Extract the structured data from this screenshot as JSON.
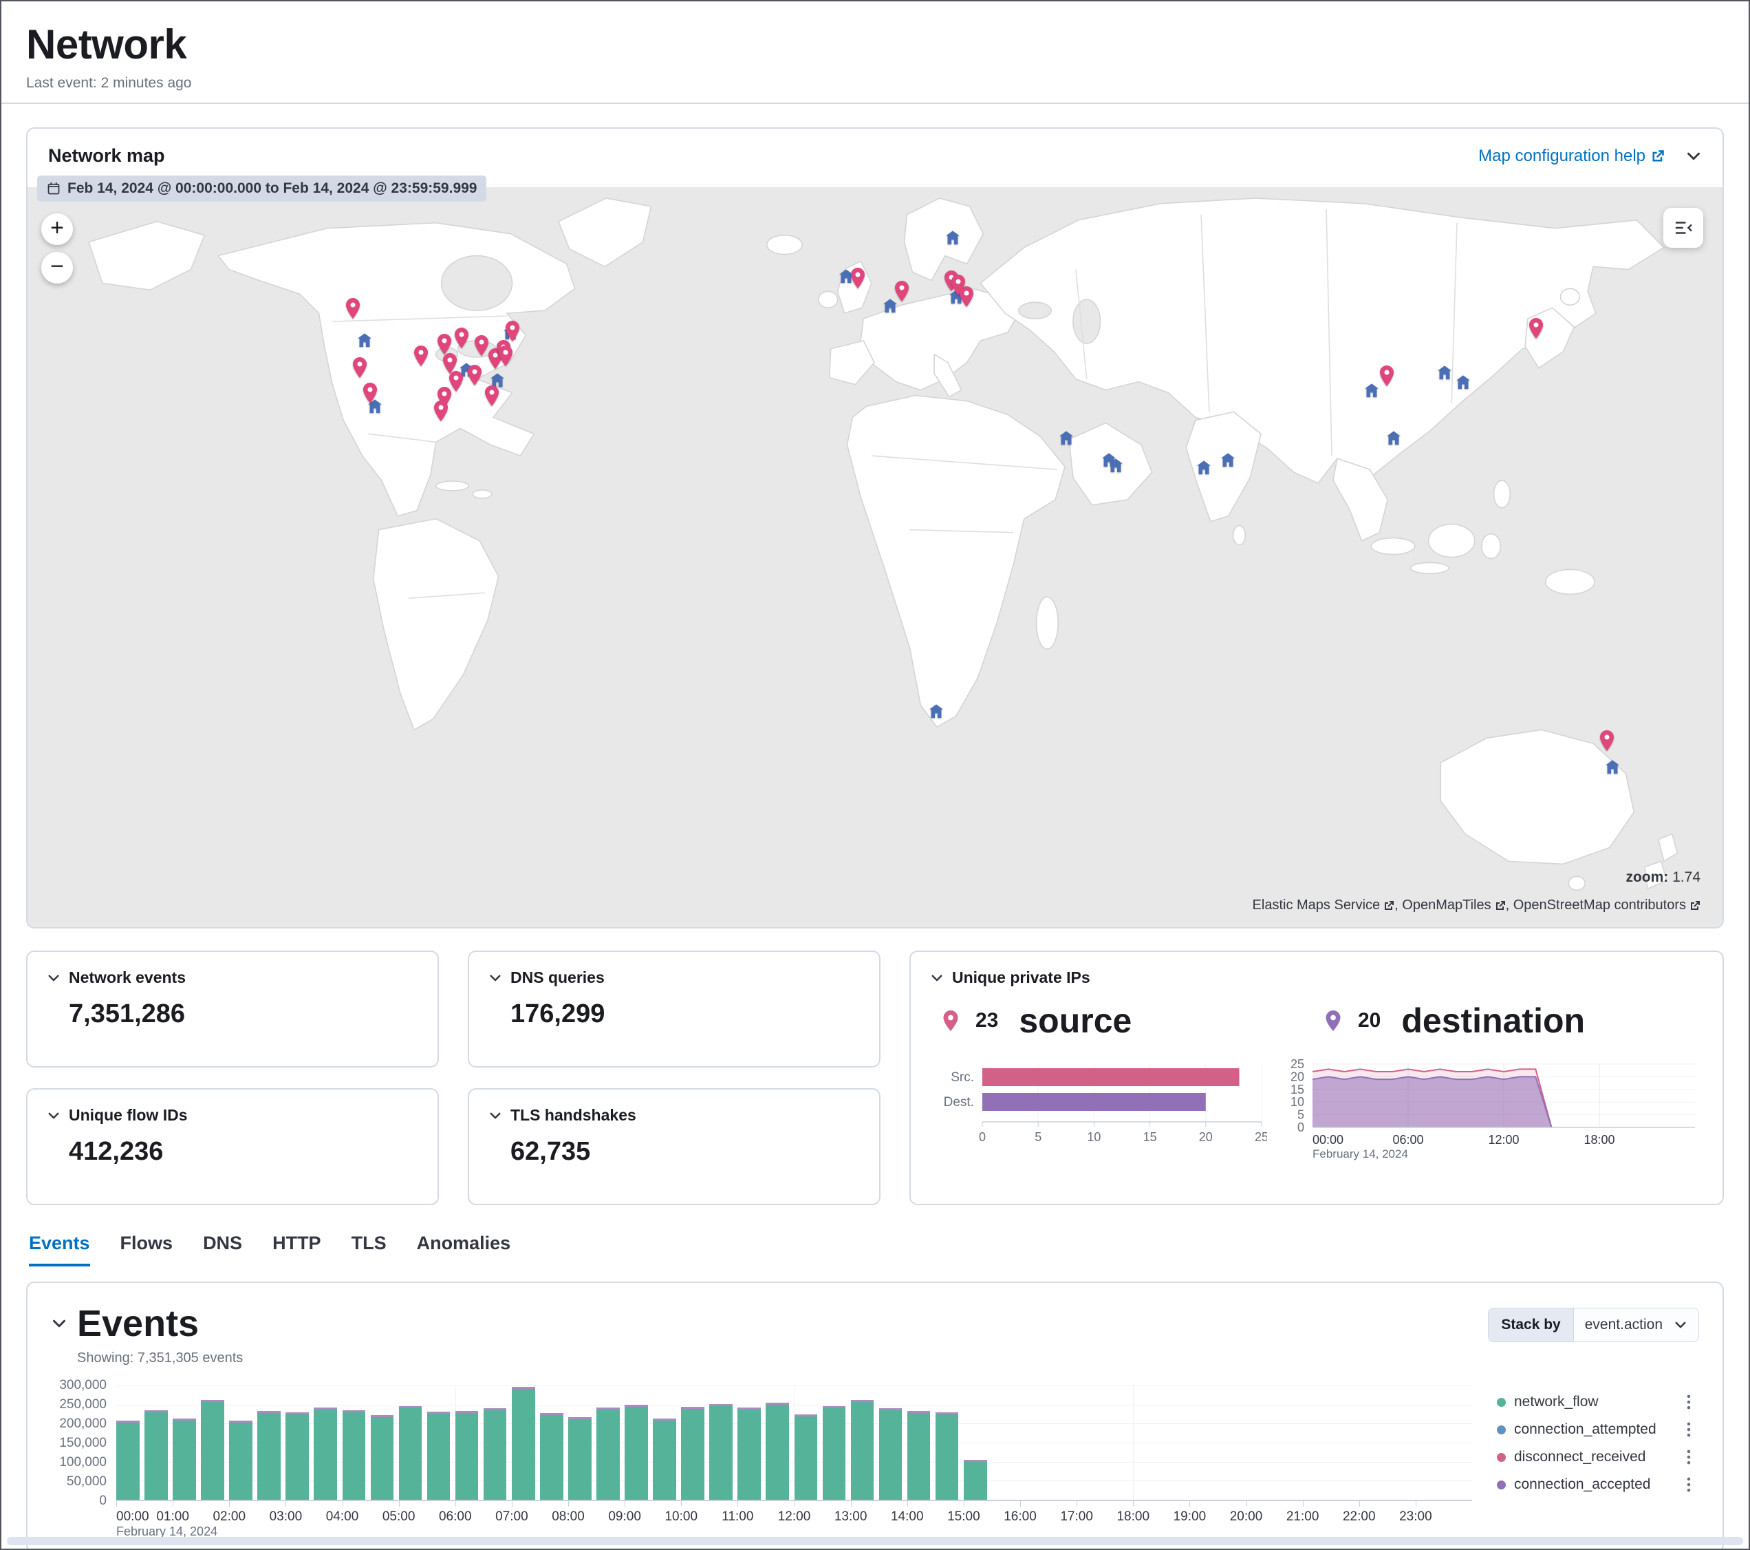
{
  "page": {
    "title": "Network",
    "last_event": "Last event: 2 minutes ago"
  },
  "map_panel": {
    "title": "Network map",
    "help_link_label": "Map configuration help",
    "date_range": "Feb 14, 2024 @ 00:00:00.000 to Feb 14, 2024 @ 23:59:59.999",
    "zoom_label": "zoom:",
    "zoom_value": "1.74",
    "attribution": [
      "Elastic Maps Service",
      "OpenMapTiles",
      "OpenStreetMap contributors"
    ],
    "markers": {
      "pin_color": "#E0467C",
      "building_color": "#4A6FB5",
      "pins": [
        [
          19.2,
          17.8
        ],
        [
          19.6,
          25.8
        ],
        [
          20.2,
          29.2
        ],
        [
          23.2,
          24.2
        ],
        [
          24.6,
          22.6
        ],
        [
          25.6,
          21.8
        ],
        [
          24.9,
          25.2
        ],
        [
          25.3,
          27.6
        ],
        [
          24.6,
          29.8
        ],
        [
          26.4,
          26.8
        ],
        [
          27.6,
          24.6
        ],
        [
          26.8,
          22.8
        ],
        [
          27.4,
          29.6
        ],
        [
          24.4,
          31.6
        ],
        [
          28.6,
          20.8
        ],
        [
          28.1,
          23.4
        ],
        [
          28.2,
          24.2
        ],
        [
          49.0,
          13.7
        ],
        [
          51.6,
          15.4
        ],
        [
          54.5,
          14.0
        ],
        [
          54.9,
          14.6
        ],
        [
          55.4,
          16.2
        ],
        [
          80.2,
          26.9
        ],
        [
          89.0,
          20.5
        ],
        [
          93.2,
          76.2
        ]
      ],
      "buildings": [
        [
          19.9,
          20.8
        ],
        [
          20.5,
          29.8
        ],
        [
          25.9,
          24.8
        ],
        [
          28.5,
          19.8
        ],
        [
          27.7,
          26.2
        ],
        [
          48.3,
          12.2
        ],
        [
          50.9,
          16.2
        ],
        [
          54.6,
          7.0
        ],
        [
          54.8,
          15.0
        ],
        [
          61.3,
          34.0
        ],
        [
          63.8,
          37.0
        ],
        [
          64.2,
          37.8
        ],
        [
          69.4,
          38.0
        ],
        [
          70.8,
          37.0
        ],
        [
          79.3,
          27.6
        ],
        [
          80.6,
          34.0
        ],
        [
          83.6,
          25.2
        ],
        [
          84.7,
          26.5
        ],
        [
          53.6,
          71.0
        ],
        [
          93.5,
          78.5
        ]
      ]
    }
  },
  "stats": {
    "network_events": {
      "label": "Network events",
      "value": "7,351,286"
    },
    "dns_queries": {
      "label": "DNS queries",
      "value": "176,299"
    },
    "unique_flow_ids": {
      "label": "Unique flow IDs",
      "value": "412,236"
    },
    "tls_handshakes": {
      "label": "TLS handshakes",
      "value": "62,735"
    },
    "unique_private_ips": {
      "label": "Unique private IPs",
      "source_count": "23",
      "source_label": "source",
      "destination_count": "20",
      "destination_label": "destination"
    }
  },
  "tabs": [
    {
      "label": "Events",
      "active": true
    },
    {
      "label": "Flows",
      "active": false
    },
    {
      "label": "DNS",
      "active": false
    },
    {
      "label": "HTTP",
      "active": false
    },
    {
      "label": "TLS",
      "active": false
    },
    {
      "label": "Anomalies",
      "active": false
    }
  ],
  "events_panel": {
    "title": "Events",
    "showing": "Showing: 7,351,305 events",
    "stack_by_label": "Stack by",
    "stack_by_value": "event.action"
  },
  "chart_data": [
    {
      "id": "events_histogram",
      "type": "bar",
      "title": "Events",
      "stacked_by": "event.action",
      "ylim": [
        0,
        300000
      ],
      "y_ticks": [
        "300,000",
        "250,000",
        "200,000",
        "150,000",
        "100,000",
        "50,000",
        "0"
      ],
      "x_ticks": [
        "00:00",
        "01:00",
        "02:00",
        "03:00",
        "04:00",
        "05:00",
        "06:00",
        "07:00",
        "08:00",
        "09:00",
        "10:00",
        "11:00",
        "12:00",
        "13:00",
        "14:00",
        "15:00",
        "16:00",
        "17:00",
        "18:00",
        "19:00",
        "20:00",
        "21:00",
        "22:00",
        "23:00"
      ],
      "x_sub_label": "February 14, 2024",
      "domain_hours": 24,
      "bucket_minutes": 30,
      "cap_color": "#A98BC0",
      "legend_position": "right",
      "series": [
        {
          "name": "network_flow",
          "color": "#54B399",
          "values": [
            205000,
            232000,
            210000,
            258000,
            205000,
            230000,
            226000,
            238000,
            232000,
            218000,
            242000,
            228000,
            230000,
            236000,
            292000,
            225000,
            213000,
            238000,
            246000,
            210000,
            240000,
            247000,
            238000,
            252000,
            220000,
            242000,
            258000,
            236000,
            230000,
            226000,
            102000
          ]
        },
        {
          "name": "connection_attempted",
          "color": "#6092C0",
          "uniform_value": 1200
        },
        {
          "name": "disconnect_received",
          "color": "#D36086",
          "uniform_value": 1200
        },
        {
          "name": "connection_accepted",
          "color": "#9170B8",
          "uniform_value": 1200
        }
      ]
    },
    {
      "id": "unique_ips_bar",
      "type": "bar",
      "orientation": "horizontal",
      "categories": [
        "Src.",
        "Dest."
      ],
      "values": [
        23,
        20
      ],
      "colors": [
        "#D36086",
        "#9170B8"
      ],
      "xlim": [
        0,
        25
      ],
      "x_ticks": [
        0,
        5,
        10,
        15,
        20,
        25
      ]
    },
    {
      "id": "unique_ips_area",
      "type": "area",
      "ylim": [
        0,
        25
      ],
      "y_ticks": [
        25,
        20,
        15,
        10,
        5,
        0
      ],
      "x_ticks": [
        "00:00",
        "06:00",
        "12:00",
        "18:00"
      ],
      "x_sub_label": "February 14, 2024",
      "domain_hours": 24,
      "series": [
        {
          "name": "source",
          "color": "#D36086",
          "fill_opacity": 0.14,
          "values": [
            22,
            23,
            22,
            23,
            22,
            22,
            23,
            22,
            23,
            22,
            22,
            23,
            22,
            23,
            23,
            0,
            0,
            0,
            0,
            0,
            0,
            0,
            0,
            0,
            0
          ]
        },
        {
          "name": "destination",
          "color": "#9170B8",
          "fill_opacity": 0.55,
          "values": [
            19,
            20,
            19,
            20,
            19,
            19,
            20,
            19,
            20,
            19,
            19,
            20,
            19,
            20,
            20,
            0,
            0,
            0,
            0,
            0,
            0,
            0,
            0,
            0,
            0
          ]
        }
      ]
    }
  ]
}
